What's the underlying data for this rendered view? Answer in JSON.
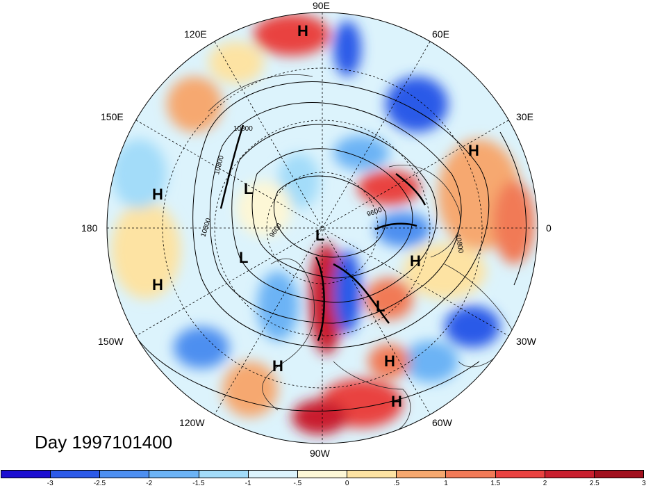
{
  "map": {
    "lon_labels": [
      {
        "id": "90e",
        "text": "90E"
      },
      {
        "id": "60e",
        "text": "60E"
      },
      {
        "id": "30e",
        "text": "30E"
      },
      {
        "id": "0",
        "text": "0"
      },
      {
        "id": "30w",
        "text": "30W"
      },
      {
        "id": "60w",
        "text": "60W"
      },
      {
        "id": "90w",
        "text": "90W"
      },
      {
        "id": "120w",
        "text": "120W"
      },
      {
        "id": "150w",
        "text": "150W"
      },
      {
        "id": "180",
        "text": "180"
      },
      {
        "id": "150e",
        "text": "150E"
      },
      {
        "id": "120e",
        "text": "120E"
      }
    ],
    "pressure_centers": [
      {
        "id": "h1",
        "text": "H"
      },
      {
        "id": "h2",
        "text": "H"
      },
      {
        "id": "h3",
        "text": "H"
      },
      {
        "id": "h4",
        "text": "H"
      },
      {
        "id": "h5",
        "text": "H"
      },
      {
        "id": "h6",
        "text": "H"
      },
      {
        "id": "h7",
        "text": "H"
      },
      {
        "id": "h8",
        "text": "H"
      },
      {
        "id": "l1",
        "text": "L"
      },
      {
        "id": "l2",
        "text": "L"
      },
      {
        "id": "l3",
        "text": "L"
      },
      {
        "id": "l4",
        "text": "L"
      }
    ],
    "contour_labels": [
      {
        "id": "c1",
        "text": "10800"
      },
      {
        "id": "c2",
        "text": "10800"
      },
      {
        "id": "c3",
        "text": "10800"
      },
      {
        "id": "c4",
        "text": "10800"
      },
      {
        "id": "c5",
        "text": "9600"
      },
      {
        "id": "c6",
        "text": "9600"
      }
    ],
    "day_label": "Day 1997101400"
  },
  "colorbar": {
    "colors": [
      "#1c0fd1",
      "#2c5ae8",
      "#4d8ff0",
      "#6cb3f5",
      "#a3dcf9",
      "#dcf3fc",
      "#fdf7d6",
      "#fde3a3",
      "#f6a86f",
      "#f17a57",
      "#e94240",
      "#c91f2e",
      "#a1101e"
    ],
    "ticks": [
      "-3",
      "-2.5",
      "-2",
      "-1.5",
      "-1",
      "-.5",
      "0",
      ".5",
      "1",
      "1.5",
      "2",
      "2.5",
      "3"
    ]
  }
}
